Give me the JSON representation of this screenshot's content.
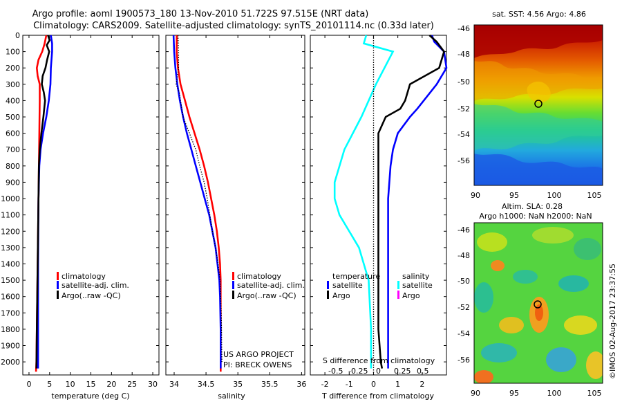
{
  "header": {
    "line1": "Argo profile: aoml 1900573_180 13-Nov-2010 51.722S 97.515E (NRT data)",
    "line2": "Climatology: CARS2009. Satellite-adjusted climatology: synTS_20101114.nc (0.33d later)"
  },
  "depth_ticks": [
    0,
    100,
    200,
    300,
    400,
    500,
    600,
    700,
    800,
    900,
    1000,
    1100,
    1200,
    1300,
    1400,
    1500,
    1600,
    1700,
    1800,
    1900,
    2000
  ],
  "colors": {
    "climatology": "#ff0000",
    "satellite": "#0000ff",
    "argo": "#000000",
    "sat_s": "#00ffff",
    "argo_s": "#ff00ff"
  },
  "chart_data": [
    {
      "type": "line",
      "xlabel": "temperature (deg C)",
      "xticks": [
        0,
        5,
        10,
        15,
        20,
        25,
        30
      ],
      "xlim": [
        -1.5,
        31.5
      ],
      "ylim": [
        0,
        2080
      ],
      "legend": [
        "climatology",
        "satellite-adj. clim.",
        "Argo(..raw -QC)"
      ],
      "series": [
        {
          "name": "climatology",
          "color": "#ff0000",
          "points": [
            [
              4.2,
              0
            ],
            [
              3.8,
              50
            ],
            [
              3.2,
              100
            ],
            [
              2.3,
              150
            ],
            [
              1.9,
              200
            ],
            [
              2.1,
              250
            ],
            [
              2.6,
              300
            ],
            [
              2.6,
              400
            ],
            [
              2.5,
              600
            ],
            [
              2.4,
              800
            ],
            [
              2.2,
              1200
            ],
            [
              2.0,
              1600
            ],
            [
              1.8,
              2000
            ],
            [
              1.7,
              2060
            ]
          ]
        },
        {
          "name": "satellite-adj. clim.",
          "color": "#0000ff",
          "points": [
            [
              5.3,
              0
            ],
            [
              5.6,
              50
            ],
            [
              5.6,
              100
            ],
            [
              5.3,
              200
            ],
            [
              5.2,
              300
            ],
            [
              4.8,
              400
            ],
            [
              4.2,
              500
            ],
            [
              3.4,
              600
            ],
            [
              2.8,
              700
            ],
            [
              2.5,
              800
            ],
            [
              2.3,
              1000
            ],
            [
              2.2,
              1400
            ],
            [
              2.2,
              1800
            ],
            [
              2.2,
              2040
            ]
          ]
        },
        {
          "name": "Argo(..raw -QC)",
          "color": "#000000",
          "points": [
            [
              4.6,
              0
            ],
            [
              5.0,
              30
            ],
            [
              4.3,
              60
            ],
            [
              4.9,
              100
            ],
            [
              4.4,
              150
            ],
            [
              4.0,
              200
            ],
            [
              3.3,
              250
            ],
            [
              3.1,
              300
            ],
            [
              3.6,
              350
            ],
            [
              3.9,
              400
            ],
            [
              3.5,
              500
            ],
            [
              3.0,
              600
            ],
            [
              2.6,
              700
            ],
            [
              2.4,
              800
            ],
            [
              2.3,
              1000
            ],
            [
              2.1,
              1400
            ],
            [
              1.9,
              1800
            ],
            [
              1.8,
              2040
            ]
          ]
        }
      ]
    },
    {
      "type": "line",
      "xlabel": "salinity",
      "xticks": [
        34,
        34.5,
        35,
        35.5,
        36
      ],
      "xlim": [
        33.87,
        36.05
      ],
      "ylim": [
        0,
        2080
      ],
      "legend": [
        "climatology",
        "satellite-adj. clim.",
        "Argo(..raw -QC)"
      ],
      "series": [
        {
          "name": "climatology",
          "color": "#ff0000",
          "points": [
            [
              34.04,
              0
            ],
            [
              34.04,
              100
            ],
            [
              34.06,
              200
            ],
            [
              34.1,
              300
            ],
            [
              34.17,
              400
            ],
            [
              34.24,
              500
            ],
            [
              34.32,
              600
            ],
            [
              34.4,
              700
            ],
            [
              34.47,
              800
            ],
            [
              34.53,
              900
            ],
            [
              34.58,
              1000
            ],
            [
              34.63,
              1100
            ],
            [
              34.67,
              1200
            ],
            [
              34.7,
              1300
            ],
            [
              34.72,
              1400
            ],
            [
              34.73,
              1500
            ],
            [
              34.73,
              1700
            ],
            [
              34.73,
              2060
            ]
          ]
        },
        {
          "name": "satellite-adj. clim.",
          "color": "#0000ff",
          "points": [
            [
              33.99,
              0
            ],
            [
              34.0,
              100
            ],
            [
              34.02,
              200
            ],
            [
              34.05,
              300
            ],
            [
              34.09,
              400
            ],
            [
              34.14,
              500
            ],
            [
              34.2,
              600
            ],
            [
              34.27,
              700
            ],
            [
              34.34,
              800
            ],
            [
              34.41,
              900
            ],
            [
              34.48,
              1000
            ],
            [
              34.55,
              1100
            ],
            [
              34.6,
              1200
            ],
            [
              34.65,
              1300
            ],
            [
              34.68,
              1400
            ],
            [
              34.71,
              1500
            ],
            [
              34.72,
              1600
            ],
            [
              34.73,
              1800
            ],
            [
              34.73,
              2040
            ]
          ]
        },
        {
          "name": "Argo(..raw -QC)",
          "color": "#000000",
          "dotted": true,
          "points": [
            [
              34.06,
              0
            ],
            [
              34.07,
              100
            ],
            [
              34.07,
              200
            ],
            [
              34.03,
              300
            ],
            [
              34.08,
              350
            ],
            [
              34.1,
              400
            ],
            [
              34.14,
              500
            ],
            [
              34.24,
              600
            ],
            [
              34.34,
              700
            ],
            [
              34.4,
              800
            ],
            [
              34.47,
              900
            ],
            [
              34.52,
              1000
            ],
            [
              34.56,
              1100
            ],
            [
              34.6,
              1200
            ],
            [
              34.65,
              1300
            ],
            [
              34.69,
              1400
            ],
            [
              34.72,
              1500
            ],
            [
              34.74,
              1700
            ],
            [
              34.75,
              2000
            ]
          ]
        }
      ],
      "annotation": [
        "US ARGO PROJECT",
        "PI: BRECK OWENS"
      ]
    },
    {
      "type": "line",
      "xlabel": "T difference from climatology",
      "top_label": "S difference from climatology",
      "xticks": [
        -2,
        -1,
        0,
        1,
        2
      ],
      "top_ticks": [
        "-0.5",
        "-0.25",
        "0",
        "0.25",
        "0.5"
      ],
      "xlim": [
        -2.6,
        3.0
      ],
      "ylim": [
        0,
        2080
      ],
      "legend_temperature": [
        "temperature",
        "satellite",
        "Argo"
      ],
      "legend_salinity": [
        "salinity",
        "satellite",
        "Argo"
      ],
      "series": [
        {
          "name": "satellite",
          "group": "temperature",
          "color": "#0000ff",
          "points": [
            [
              2.4,
              0
            ],
            [
              2.5,
              40
            ],
            [
              2.9,
              100
            ],
            [
              3.0,
              200
            ],
            [
              2.6,
              300
            ],
            [
              1.8,
              450
            ],
            [
              1.5,
              500
            ],
            [
              1.0,
              600
            ],
            [
              0.8,
              700
            ],
            [
              0.7,
              800
            ],
            [
              0.6,
              1000
            ],
            [
              0.6,
              1500
            ],
            [
              0.6,
              2000
            ],
            [
              0.6,
              2040
            ]
          ]
        },
        {
          "name": "Argo",
          "group": "temperature",
          "color": "#000000",
          "points": [
            [
              2.3,
              0
            ],
            [
              2.6,
              40
            ],
            [
              2.9,
              100
            ],
            [
              2.8,
              150
            ],
            [
              2.7,
              200
            ],
            [
              1.5,
              300
            ],
            [
              1.3,
              400
            ],
            [
              1.1,
              450
            ],
            [
              0.5,
              500
            ],
            [
              0.2,
              600
            ],
            [
              0.2,
              700
            ],
            [
              0.2,
              1000
            ],
            [
              0.2,
              1400
            ],
            [
              0.2,
              1800
            ],
            [
              0.3,
              2000
            ],
            [
              0.35,
              2040
            ]
          ]
        },
        {
          "name": "satellite",
          "group": "salinity",
          "color": "#00ffff",
          "points": [
            [
              -0.3,
              0
            ],
            [
              -0.4,
              50
            ],
            [
              0.8,
              100
            ],
            [
              0.1,
              300
            ],
            [
              -0.5,
              500
            ],
            [
              -1.2,
              700
            ],
            [
              -1.6,
              900
            ],
            [
              -1.6,
              1000
            ],
            [
              -1.4,
              1100
            ],
            [
              -0.6,
              1300
            ],
            [
              -0.2,
              1500
            ],
            [
              -0.1,
              1800
            ],
            [
              -0.1,
              2000
            ],
            [
              -0.1,
              2040
            ]
          ]
        },
        {
          "name": "zero",
          "group": "reference",
          "color": "#000000",
          "dotted": true,
          "points": [
            [
              0,
              0
            ],
            [
              0,
              2080
            ]
          ]
        }
      ]
    }
  ],
  "maps": [
    {
      "title": "sat. SST: 4.56 Argo: 4.86",
      "lat_ticks": [
        "-46",
        "-48",
        "-50",
        "-52",
        "-54",
        "-56"
      ],
      "lon_ticks": [
        "90",
        "95",
        "100",
        "105"
      ]
    },
    {
      "title1": "Altim. SLA: 0.28",
      "title2": "Argo h1000: NaN h2000: NaN",
      "lat_ticks": [
        "-46",
        "-48",
        "-50",
        "-52",
        "-54",
        "-56"
      ],
      "lon_ticks": [
        "90",
        "95",
        "100",
        "105"
      ]
    }
  ],
  "stamp": "©IMOS 02-Aug-2017 23:37:55"
}
